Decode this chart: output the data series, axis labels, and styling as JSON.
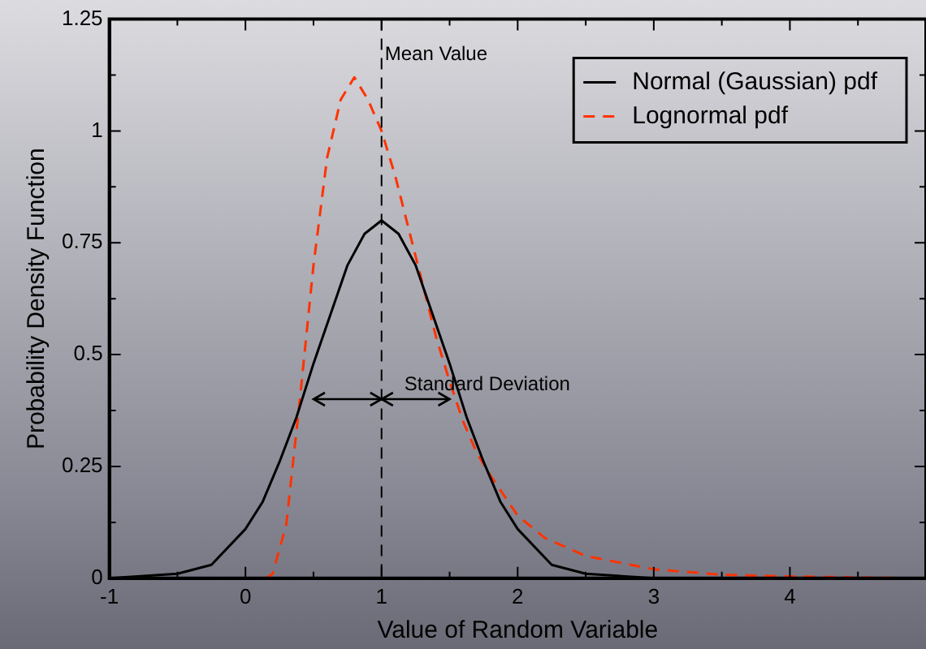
{
  "chart_data": {
    "type": "line",
    "xlabel": "Value of Random Variable",
    "ylabel": "Probability Density Function",
    "xlim": [
      -1,
      5
    ],
    "ylim": [
      0,
      1.25
    ],
    "xticks": [
      -1,
      {
        "value": -0.5,
        "label": null
      },
      0,
      {
        "value": 0.5,
        "label": null
      },
      1,
      {
        "value": 1.5,
        "label": null
      },
      2,
      {
        "value": 2.5,
        "label": null
      },
      3,
      {
        "value": 3.5,
        "label": null
      },
      4,
      {
        "value": 4.5,
        "label": null
      }
    ],
    "yticks": [
      0,
      {
        "value": 0.125,
        "label": null
      },
      0.25,
      {
        "value": 0.375,
        "label": null
      },
      0.5,
      {
        "value": 0.625,
        "label": null
      },
      0.75,
      {
        "value": 0.875,
        "label": null
      },
      1,
      {
        "value": 1.125,
        "label": null
      },
      1.25
    ],
    "grid": false,
    "legend": "top right",
    "marker": "none",
    "series": [
      {
        "name": "Normal (Gaussian) pdf",
        "color": "#000000",
        "line_style": "solid",
        "x": [
          -1,
          -0.5,
          -0.25,
          0,
          0.125,
          0.25,
          0.375,
          0.5,
          0.625,
          0.75,
          0.875,
          1,
          1.125,
          1.25,
          1.375,
          1.5,
          1.625,
          1.75,
          1.875,
          2,
          2.25,
          2.5,
          3,
          5
        ],
        "values": [
          0,
          0.01,
          0.03,
          0.11,
          0.17,
          0.26,
          0.36,
          0.48,
          0.59,
          0.7,
          0.77,
          0.8,
          0.77,
          0.7,
          0.59,
          0.48,
          0.36,
          0.26,
          0.17,
          0.11,
          0.03,
          0.01,
          0,
          0
        ]
      },
      {
        "name": "Lognormal pdf",
        "color": "#ff3300",
        "line_style": "dashed",
        "x": [
          -1,
          0.1,
          0.15,
          0.2,
          0.3,
          0.4,
          0.5,
          0.6,
          0.7,
          0.8,
          0.9,
          1,
          1.1,
          1.2,
          1.3,
          1.4,
          1.5,
          1.6,
          1.7,
          1.8,
          2,
          2.2,
          2.5,
          3,
          3.5,
          4,
          5
        ],
        "values": [
          0,
          0,
          0,
          0.01,
          0.12,
          0.4,
          0.7,
          0.94,
          1.07,
          1.12,
          1.07,
          1,
          0.9,
          0.78,
          0.66,
          0.54,
          0.44,
          0.35,
          0.28,
          0.23,
          0.14,
          0.09,
          0.05,
          0.02,
          0.008,
          0.004,
          0
        ]
      }
    ],
    "ref_lines": [
      {
        "axis": "x",
        "value": 1,
        "label": "Mean Value",
        "color": "#000000",
        "line_style": "dashed"
      }
    ],
    "annotations": [
      {
        "text": "Standard Deviation",
        "x": 1.5,
        "y": 0.4
      }
    ]
  }
}
